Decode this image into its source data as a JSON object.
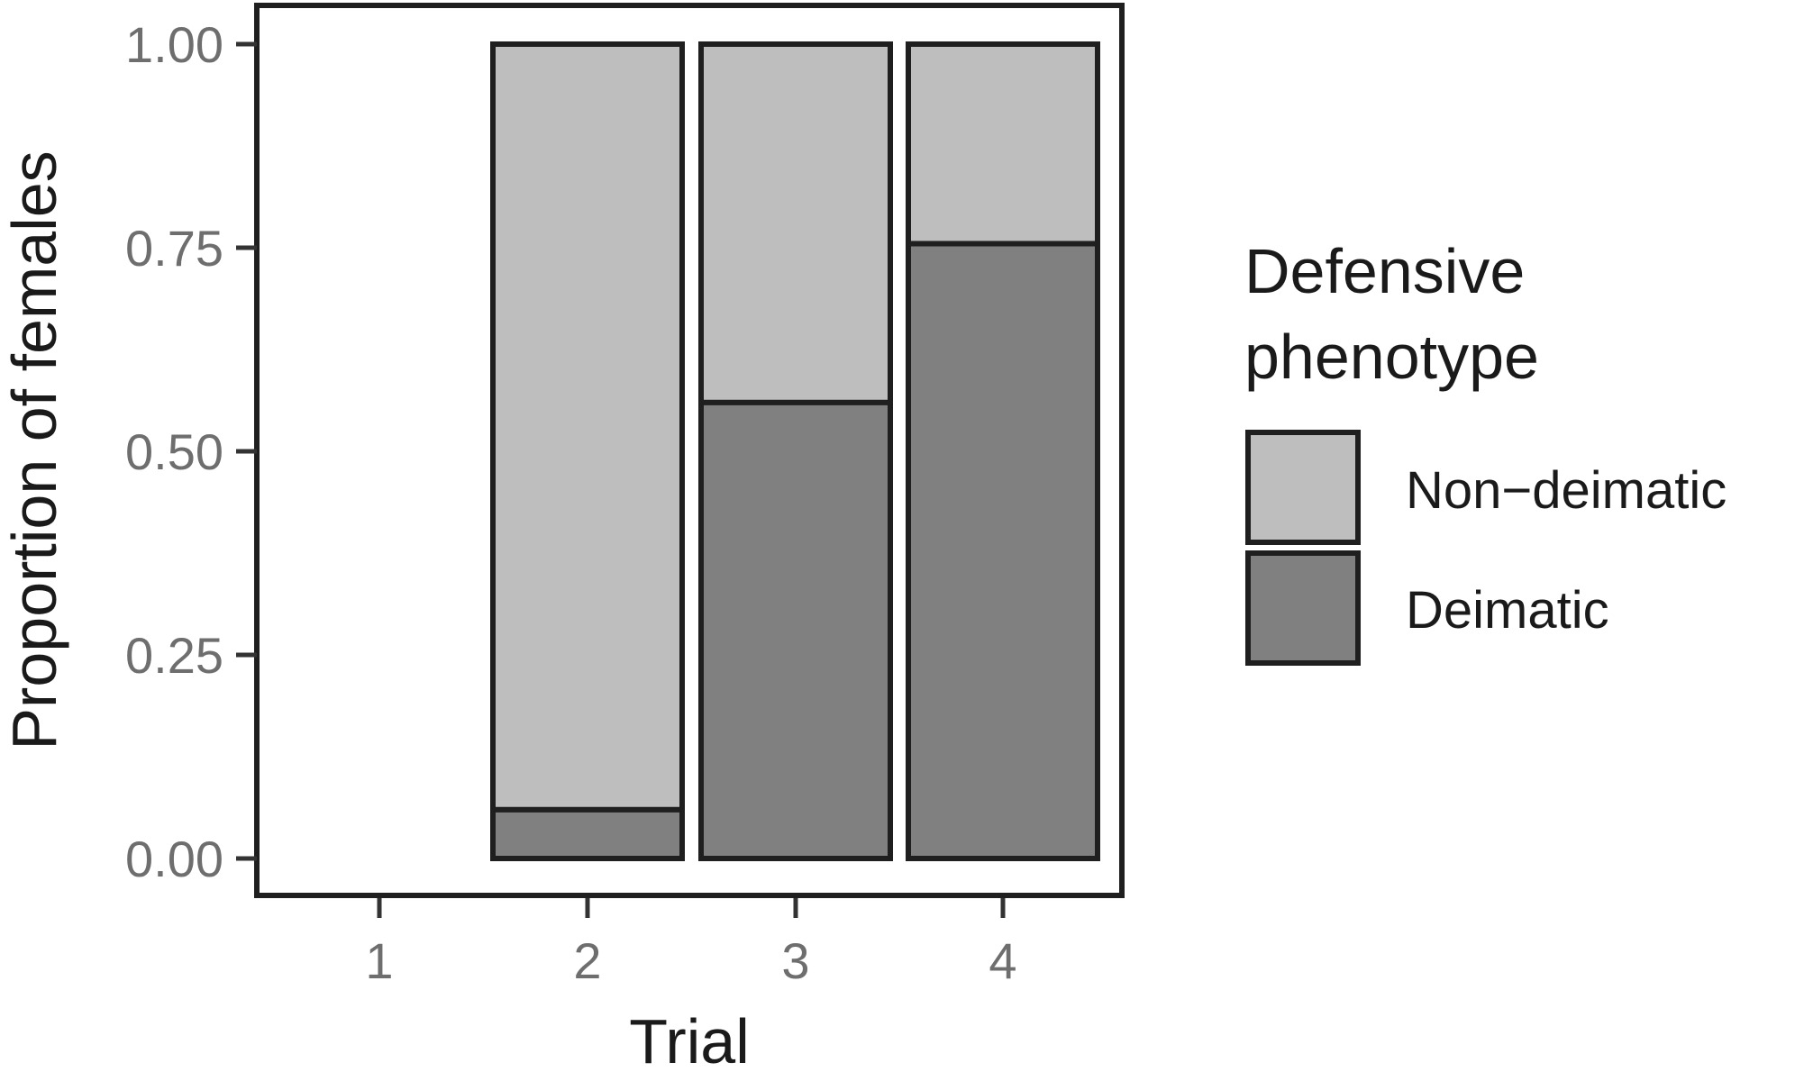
{
  "chart_data": {
    "type": "bar",
    "stacked": true,
    "normalized": true,
    "title": "",
    "xlabel": "Trial",
    "ylabel": "Proportion of females",
    "categories": [
      "1",
      "2",
      "3",
      "4"
    ],
    "series": [
      {
        "name": "Deimatic",
        "values": [
          null,
          0.06,
          0.56,
          0.755
        ],
        "color": "#808080"
      },
      {
        "name": "Non−deimatic",
        "values": [
          null,
          0.94,
          0.44,
          0.245
        ],
        "color": "#bebebe"
      }
    ],
    "ylim": [
      0,
      1
    ],
    "yticks": [
      "0.00",
      "0.25",
      "0.50",
      "0.75",
      "1.00"
    ],
    "grid": false,
    "legend": {
      "title_lines": [
        "Defensive",
        "phenotype"
      ],
      "position": "right",
      "entries": [
        {
          "label": "Non−deimatic",
          "color": "#bebebe"
        },
        {
          "label": "Deimatic",
          "color": "#808080"
        }
      ]
    },
    "outline_color": "#1f1f1f"
  }
}
